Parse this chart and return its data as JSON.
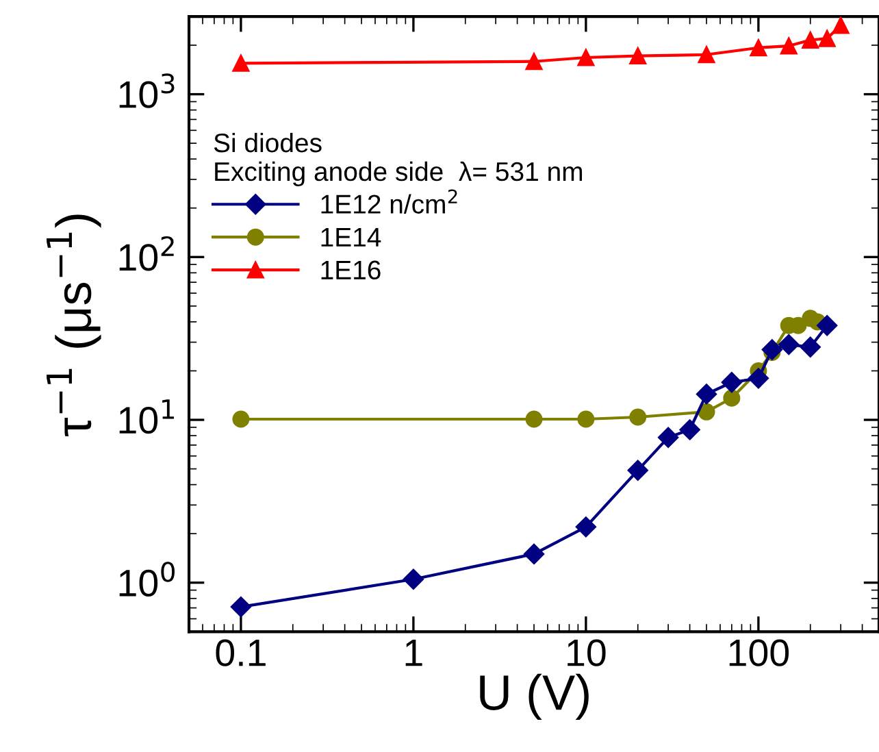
{
  "chart_data": {
    "type": "line",
    "xlabel": "U (V)",
    "ylabel": "τ$^{−1}$ (μs$^{−1}$)",
    "legend_title": "Si diodes\nExciting anode side  λ= 531 nm",
    "log": "xy",
    "xlim": [
      0.05,
      500
    ],
    "ylim": [
      0.5,
      3000
    ],
    "xticks": [
      0.1,
      1,
      10,
      100
    ],
    "yticks": [
      {
        "value": 1,
        "label": "10$^{0}$"
      },
      {
        "value": 10,
        "label": "10$^{1}$"
      },
      {
        "value": 100,
        "label": "10$^{2}$"
      },
      {
        "value": 1000,
        "label": "10$^{3}$"
      }
    ],
    "legend": "top left",
    "grid": false,
    "line_style": "solid",
    "series": [
      {
        "name": "1E12 n/cm$^{2}$",
        "color": "#000080",
        "marker": "diamond",
        "x": [
          0.1,
          1,
          5,
          10,
          20,
          30,
          40,
          50,
          70,
          100,
          120,
          150,
          200,
          250
        ],
        "values": [
          0.71,
          1.05,
          1.5,
          2.2,
          4.9,
          7.8,
          8.7,
          14.4,
          17,
          18,
          27,
          29,
          28,
          38
        ]
      },
      {
        "name": "1E14",
        "color": "#808000",
        "marker": "circle",
        "x": [
          0.1,
          5,
          10,
          20,
          50,
          70,
          100,
          120,
          150,
          170,
          200,
          220
        ],
        "values": [
          10.1,
          10.1,
          10.1,
          10.4,
          11.2,
          13.6,
          20,
          26,
          38,
          38,
          42,
          40
        ]
      },
      {
        "name": "1E16",
        "color": "#ff0000",
        "marker": "triangle",
        "x": [
          0.1,
          5,
          10,
          20,
          50,
          100,
          150,
          200,
          250,
          300
        ],
        "values": [
          1550,
          1590,
          1680,
          1720,
          1750,
          1930,
          1980,
          2150,
          2200,
          2650
        ]
      }
    ]
  }
}
